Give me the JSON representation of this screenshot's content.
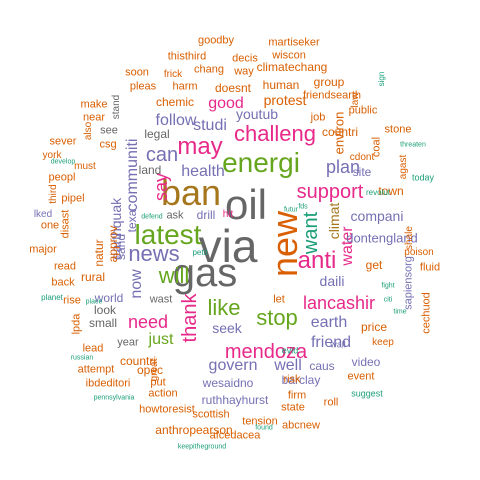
{
  "palette": {
    "purple": "#7570b3",
    "orange": "#d95f02",
    "green": "#66a61e",
    "teal": "#1b9e77",
    "magenta": "#e7298a",
    "gold": "#a6761d",
    "olive": "#666666",
    "yellow": "#e6ab02"
  },
  "words": [
    "via",
    "gas",
    "oil",
    "ban",
    "new",
    "latest",
    "energi",
    "news",
    "anti",
    "will",
    "like",
    "stop",
    "may",
    "challeng",
    "support",
    "mendoza",
    "thank",
    "want",
    "water",
    "lancashir",
    "plan",
    "earth",
    "now",
    "need",
    "say",
    "can",
    "health",
    "follow",
    "govern",
    "just",
    "daili",
    "friend",
    "well",
    "youtub",
    "studi",
    "good",
    "climat",
    "communiti",
    "earthquak",
    "dontengland",
    "compani",
    "site",
    "seek",
    "drill",
    "barclay",
    "caus",
    "price",
    "let",
    "wesaidno",
    "ruthhayhurst",
    "protest",
    "human",
    "doesnt",
    "chemic",
    "legal",
    "environ",
    "countri",
    "opec",
    "world",
    "natur",
    "approv",
    "sand",
    "texa",
    "small",
    "look",
    "rural",
    "video",
    "keep",
    "sapiensorg",
    "fluid",
    "town",
    "get",
    "shale",
    "poison",
    "stone",
    "agast",
    "coal",
    "cdont",
    "public",
    "law",
    "countri",
    "group",
    "friendsearth",
    "climatechang",
    "martiseker",
    "wiscon",
    "goodby",
    "thisthird",
    "decis",
    "way",
    "chang",
    "frick",
    "harm",
    "pleas",
    "soon",
    "stand",
    "make",
    "near",
    "also",
    "sever",
    "csg",
    "york",
    "peopl",
    "must",
    "third",
    "pipel",
    "disast",
    "one",
    "major",
    "read",
    "back",
    "rise",
    "lpda",
    "lead",
    "attempt",
    "ibdeditori",
    "great",
    "put",
    "action",
    "howtoresist",
    "scottish",
    "tension",
    "abcnew",
    "state",
    "roll",
    "event",
    "suggest",
    "firm",
    "risk",
    "evid",
    "anthropearson",
    "afcedacea",
    "keepitheground",
    "found",
    "wall",
    "russian",
    "pennsylvania",
    "place",
    "planet",
    "develop",
    "lked",
    "defend",
    "hit",
    "futur",
    "fds",
    "revolut",
    "today",
    "threaten",
    "sign",
    "cechuod",
    "job",
    "see",
    "land",
    "wast",
    "year",
    "ask",
    "petit",
    "fight",
    "citi",
    "time"
  ]
}
